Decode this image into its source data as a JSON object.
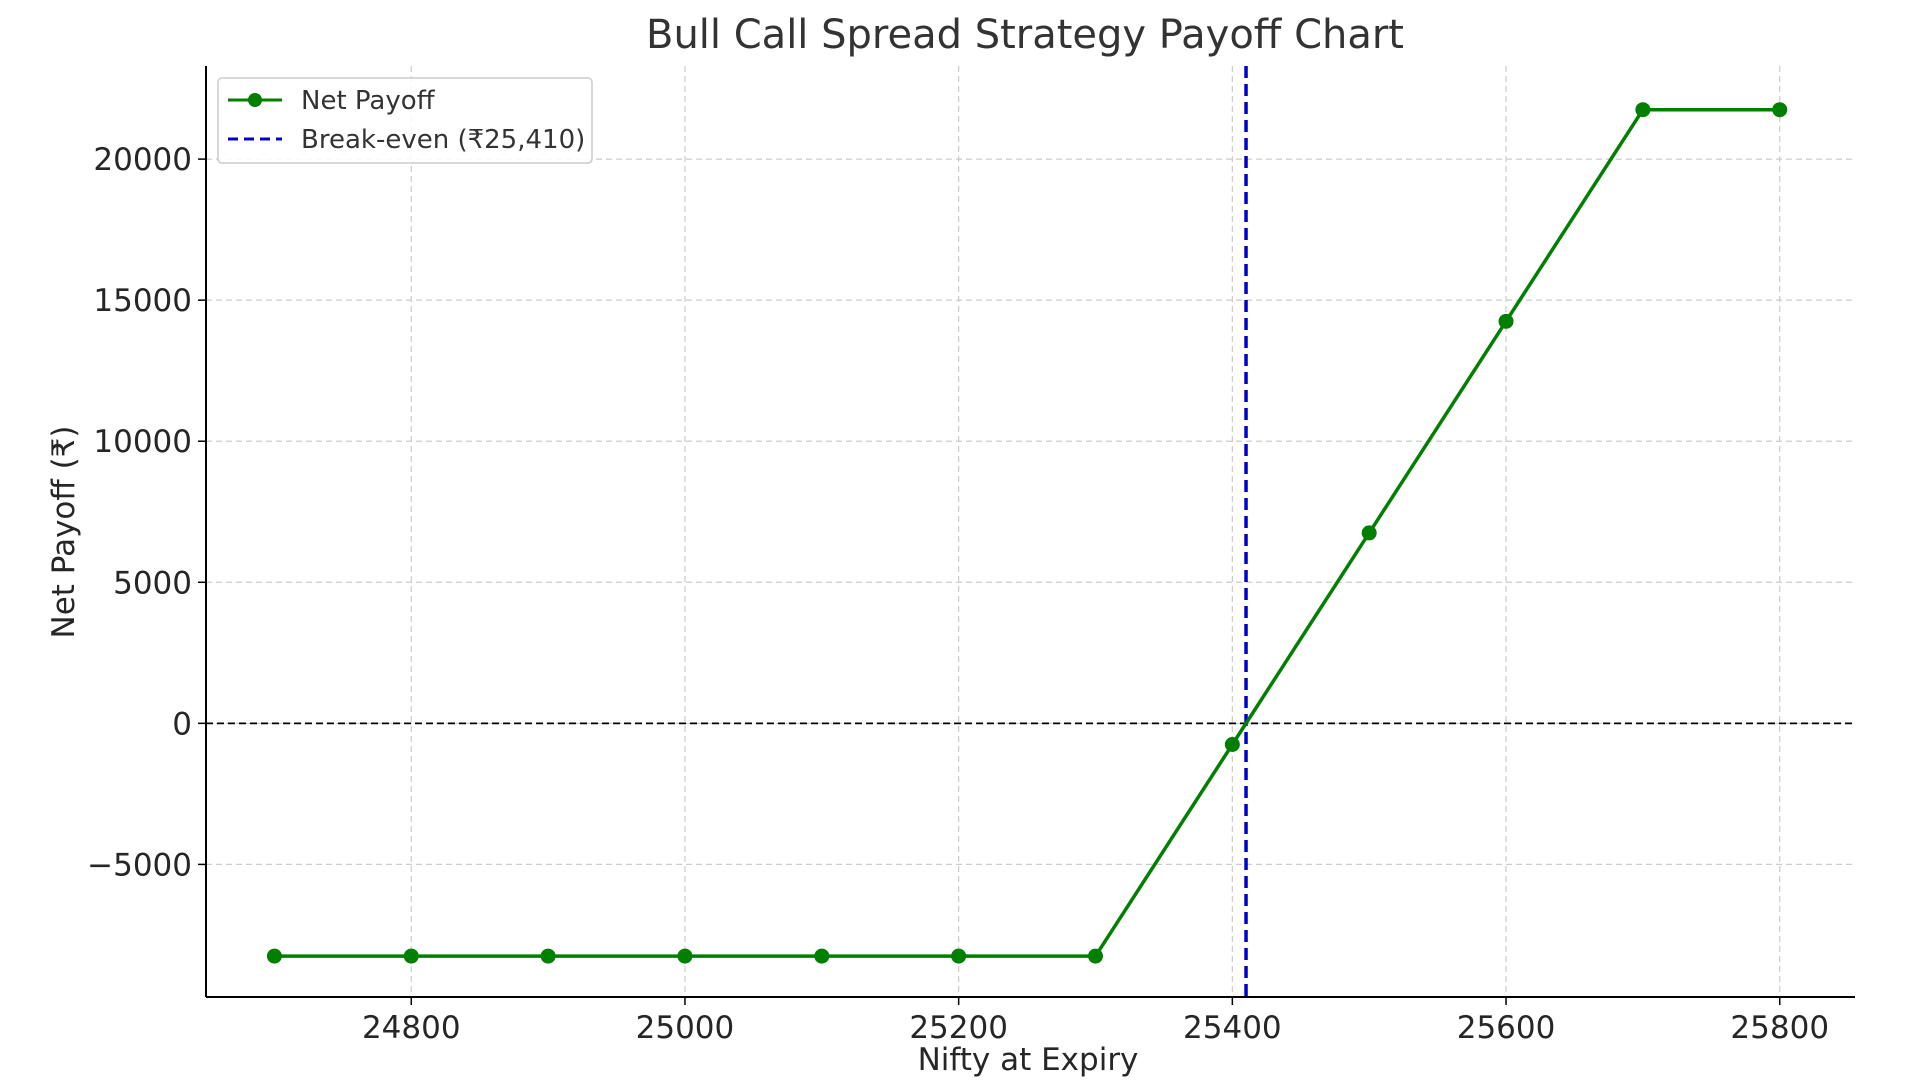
{
  "chart_data": {
    "type": "line",
    "title": "Bull Call Spread Strategy Payoff Chart",
    "xlabel": "Nifty at Expiry",
    "ylabel": "Net Payoff (₹)",
    "xlim": [
      24650,
      25855
    ],
    "ylim": [
      -9700,
      23300
    ],
    "x_ticks": [
      24800,
      25000,
      25200,
      25400,
      25600,
      25800
    ],
    "x_tick_labels": [
      "24800",
      "25000",
      "25200",
      "25400",
      "25600",
      "25800"
    ],
    "y_ticks": [
      -5000,
      0,
      5000,
      10000,
      15000,
      20000
    ],
    "y_tick_labels": [
      "−5000",
      "0",
      "5000",
      "10000",
      "15000",
      "20000"
    ],
    "grid": true,
    "legend_position": "top-left",
    "series": [
      {
        "name": "Net Payoff",
        "color": "#007f00",
        "marker": "circle",
        "x": [
          24700,
          24800,
          24900,
          25000,
          25100,
          25200,
          25300,
          25400,
          25500,
          25600,
          25700,
          25800
        ],
        "y": [
          -8250,
          -8250,
          -8250,
          -8250,
          -8250,
          -8250,
          -8250,
          -750,
          6750,
          14250,
          21750,
          21750
        ]
      }
    ],
    "reference_lines": [
      {
        "name": "Break-even (₹25,410)",
        "orientation": "vertical",
        "value": 25410,
        "color": "#0000cc",
        "style": "dashed"
      },
      {
        "name": "",
        "orientation": "horizontal",
        "value": 0,
        "color": "#000000",
        "style": "dashed"
      }
    ]
  }
}
